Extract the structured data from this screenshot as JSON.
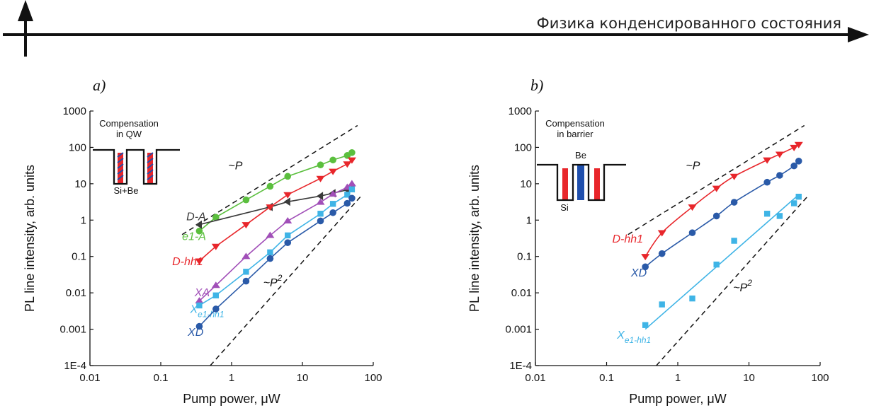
{
  "header": {
    "title": "Физика конденсированного состояния"
  },
  "colors": {
    "red": "#e8262b",
    "green": "#5bbf3e",
    "gray": "#3a3a3a",
    "purple": "#a14fb8",
    "lightblue": "#3fb4e6",
    "darkblue": "#2a5aa8",
    "barrier": "#1f4fad"
  },
  "chart_data": [
    {
      "type": "scatter",
      "panel_label": "a",
      "xlabel": "Pump power, μW",
      "ylabel": "PL line intensity, arb. units",
      "xscale": "log",
      "yscale": "log",
      "xlim": [
        0.01,
        100
      ],
      "ylim": [
        0.0001,
        1000
      ],
      "xticks": [
        {
          "v": 0.01,
          "label": "0.01"
        },
        {
          "v": 0.1,
          "label": "0.1"
        },
        {
          "v": 1,
          "label": "1"
        },
        {
          "v": 10,
          "label": "10"
        },
        {
          "v": 100,
          "label": "100"
        }
      ],
      "yticks": [
        {
          "v": 0.0001,
          "label": "1E-4"
        },
        {
          "v": 0.001,
          "label": "0.001"
        },
        {
          "v": 0.01,
          "label": "0.01"
        },
        {
          "v": 0.1,
          "label": "0.1"
        },
        {
          "v": 1,
          "label": "1"
        },
        {
          "v": 10,
          "label": "10"
        },
        {
          "v": 100,
          "label": "100"
        },
        {
          "v": 1000,
          "label": "1000"
        }
      ],
      "inset": {
        "title_lines": [
          "Compensation",
          "in QW"
        ],
        "label": "Si+Be"
      },
      "guides": [
        {
          "label": "~P",
          "points": [
            [
              0.2,
              0.4
            ],
            [
              60,
              400
            ]
          ],
          "label_at": [
            0.9,
            25
          ]
        },
        {
          "label": "~P",
          "exponent": "2",
          "points": [
            [
              0.5,
              0.0001
            ],
            [
              70,
              5
            ]
          ],
          "label_at": [
            2.8,
            0.015
          ]
        }
      ],
      "series": [
        {
          "name": "e1-A",
          "color": "green",
          "marker": "circle",
          "connect": "polyline",
          "label_at": [
            0.2,
            0.28
          ],
          "x": [
            0.35,
            0.6,
            1.6,
            3.5,
            6.2,
            18,
            27,
            43,
            50
          ],
          "y": [
            0.5,
            1.2,
            3.6,
            8.5,
            16,
            33,
            45,
            60,
            72
          ]
        },
        {
          "name": "D-A",
          "color": "gray",
          "marker": "triangle-left",
          "connect": "polyline",
          "label_at": [
            0.23,
            1.0
          ],
          "x": [
            0.35,
            3.5,
            6.2,
            18,
            27,
            43,
            50
          ],
          "y": [
            0.75,
            2.3,
            3.2,
            4.6,
            5.5,
            6.8,
            7.5
          ]
        },
        {
          "name": "D-hh1",
          "color": "red",
          "marker": "triangle-down",
          "connect": "polyline",
          "label_at": [
            0.145,
            0.058
          ],
          "x": [
            0.35,
            0.6,
            1.6,
            3.5,
            6.2,
            18,
            27,
            43,
            50
          ],
          "y": [
            0.075,
            0.19,
            0.75,
            2.3,
            5,
            14,
            22,
            35,
            45
          ]
        },
        {
          "name": "XA",
          "color": "purple",
          "marker": "triangle-up",
          "connect": "polyline",
          "label_at": [
            0.3,
            0.008
          ],
          "x": [
            0.35,
            0.6,
            1.6,
            3.5,
            6.2,
            18,
            27,
            43,
            50
          ],
          "y": [
            0.006,
            0.016,
            0.1,
            0.38,
            0.95,
            3.1,
            5.2,
            8,
            10
          ]
        },
        {
          "name": "X",
          "sub": "e1-hh1",
          "color": "lightblue",
          "marker": "square",
          "connect": "polyline",
          "label_at": [
            0.26,
            0.0028
          ],
          "x": [
            0.35,
            0.6,
            1.6,
            3.5,
            6.2,
            18,
            27,
            43,
            50
          ],
          "y": [
            0.0045,
            0.0085,
            0.038,
            0.13,
            0.38,
            1.5,
            2.8,
            5,
            7
          ]
        },
        {
          "name": "XD",
          "color": "darkblue",
          "marker": "circle",
          "connect": "polyline",
          "label_at": [
            0.24,
            0.00065
          ],
          "x": [
            0.35,
            0.6,
            1.6,
            3.5,
            6.2,
            18,
            27,
            43,
            50
          ],
          "y": [
            0.0012,
            0.0036,
            0.021,
            0.088,
            0.24,
            0.95,
            1.6,
            2.9,
            4
          ]
        }
      ]
    },
    {
      "type": "scatter",
      "panel_label": "b",
      "xlabel": "Pump power, μW",
      "ylabel": "PL line intensity, arb. units",
      "xscale": "log",
      "yscale": "log",
      "xlim": [
        0.01,
        100
      ],
      "ylim": [
        0.0001,
        1000
      ],
      "xticks": [
        {
          "v": 0.01,
          "label": "0.01"
        },
        {
          "v": 0.1,
          "label": "0.1"
        },
        {
          "v": 1,
          "label": "1"
        },
        {
          "v": 10,
          "label": "10"
        },
        {
          "v": 100,
          "label": "100"
        }
      ],
      "yticks": [
        {
          "v": 0.0001,
          "label": "1E-4"
        },
        {
          "v": 0.001,
          "label": "0.001"
        },
        {
          "v": 0.01,
          "label": "0.01"
        },
        {
          "v": 0.1,
          "label": "0.1"
        },
        {
          "v": 1,
          "label": "1"
        },
        {
          "v": 10,
          "label": "10"
        },
        {
          "v": 100,
          "label": "100"
        },
        {
          "v": 1000,
          "label": "1000"
        }
      ],
      "inset": {
        "title_lines": [
          "Compensation",
          "in barrier"
        ],
        "label": "Si",
        "label2": "Be"
      },
      "guides": [
        {
          "label": "~P",
          "points": [
            [
              0.2,
              0.4
            ],
            [
              60,
              400
            ]
          ],
          "label_at": [
            1.3,
            25
          ]
        },
        {
          "label": "~P",
          "exponent": "2",
          "points": [
            [
              0.5,
              0.0001
            ],
            [
              70,
              5
            ]
          ],
          "label_at": [
            6,
            0.011
          ]
        }
      ],
      "series": [
        {
          "name": "D-hh1",
          "color": "red",
          "marker": "triangle-down",
          "connect": "smooth",
          "label_at": [
            0.12,
            0.24
          ],
          "x": [
            0.35,
            0.6,
            1.6,
            3.5,
            6.2,
            18,
            27,
            43,
            50
          ],
          "y": [
            0.1,
            0.45,
            2.3,
            7.5,
            16,
            45,
            65,
            100,
            120
          ]
        },
        {
          "name": "XD",
          "color": "darkblue",
          "marker": "circle",
          "connect": "smooth",
          "label_at": [
            0.22,
            0.028
          ],
          "x": [
            0.35,
            0.6,
            1.6,
            3.5,
            6.2,
            18,
            27,
            43,
            50
          ],
          "y": [
            0.052,
            0.12,
            0.45,
            1.3,
            3.1,
            11,
            17,
            31,
            42
          ]
        },
        {
          "name": "X",
          "sub": "e1-hh1",
          "color": "lightblue",
          "marker": "square",
          "connect": "fit",
          "fit": [
            [
              0.35,
              0.001
            ],
            [
              50,
              5
            ]
          ],
          "label_at": [
            0.14,
            0.00055
          ],
          "x": [
            0.35,
            0.6,
            1.6,
            3.5,
            6.2,
            18,
            27,
            43,
            50
          ],
          "y": [
            0.0013,
            0.0048,
            0.007,
            0.06,
            0.27,
            1.5,
            1.3,
            2.9,
            4.4
          ]
        }
      ]
    }
  ]
}
